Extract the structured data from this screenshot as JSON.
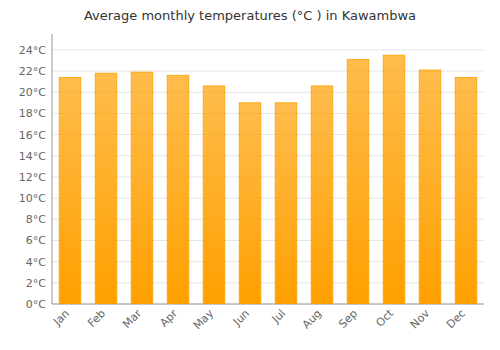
{
  "chart_data": {
    "type": "bar",
    "title": "Average monthly temperatures (°C ) in Kawambwa",
    "categories": [
      "Jan",
      "Feb",
      "Mar",
      "Apr",
      "May",
      "Jun",
      "Jul",
      "Aug",
      "Sep",
      "Oct",
      "Nov",
      "Dec"
    ],
    "values": [
      21.4,
      21.8,
      21.9,
      21.6,
      20.6,
      19.0,
      19.0,
      20.6,
      23.1,
      23.5,
      22.1,
      21.4
    ],
    "color": "#FFA000",
    "ylim": [
      0,
      25.5
    ],
    "yticks": [
      {
        "value": 0,
        "label": "0°C"
      },
      {
        "value": 2,
        "label": "2°C"
      },
      {
        "value": 4,
        "label": "4°C"
      },
      {
        "value": 6,
        "label": "6°C"
      },
      {
        "value": 8,
        "label": "8°C"
      },
      {
        "value": 10,
        "label": "10°C"
      },
      {
        "value": 12,
        "label": "12°C"
      },
      {
        "value": 14,
        "label": "14°C"
      },
      {
        "value": 16,
        "label": "16°C"
      },
      {
        "value": 18,
        "label": "18°C"
      },
      {
        "value": 20,
        "label": "20°C"
      },
      {
        "value": 22,
        "label": "22°C"
      },
      {
        "value": 24,
        "label": "24°C"
      }
    ],
    "grid": true
  }
}
